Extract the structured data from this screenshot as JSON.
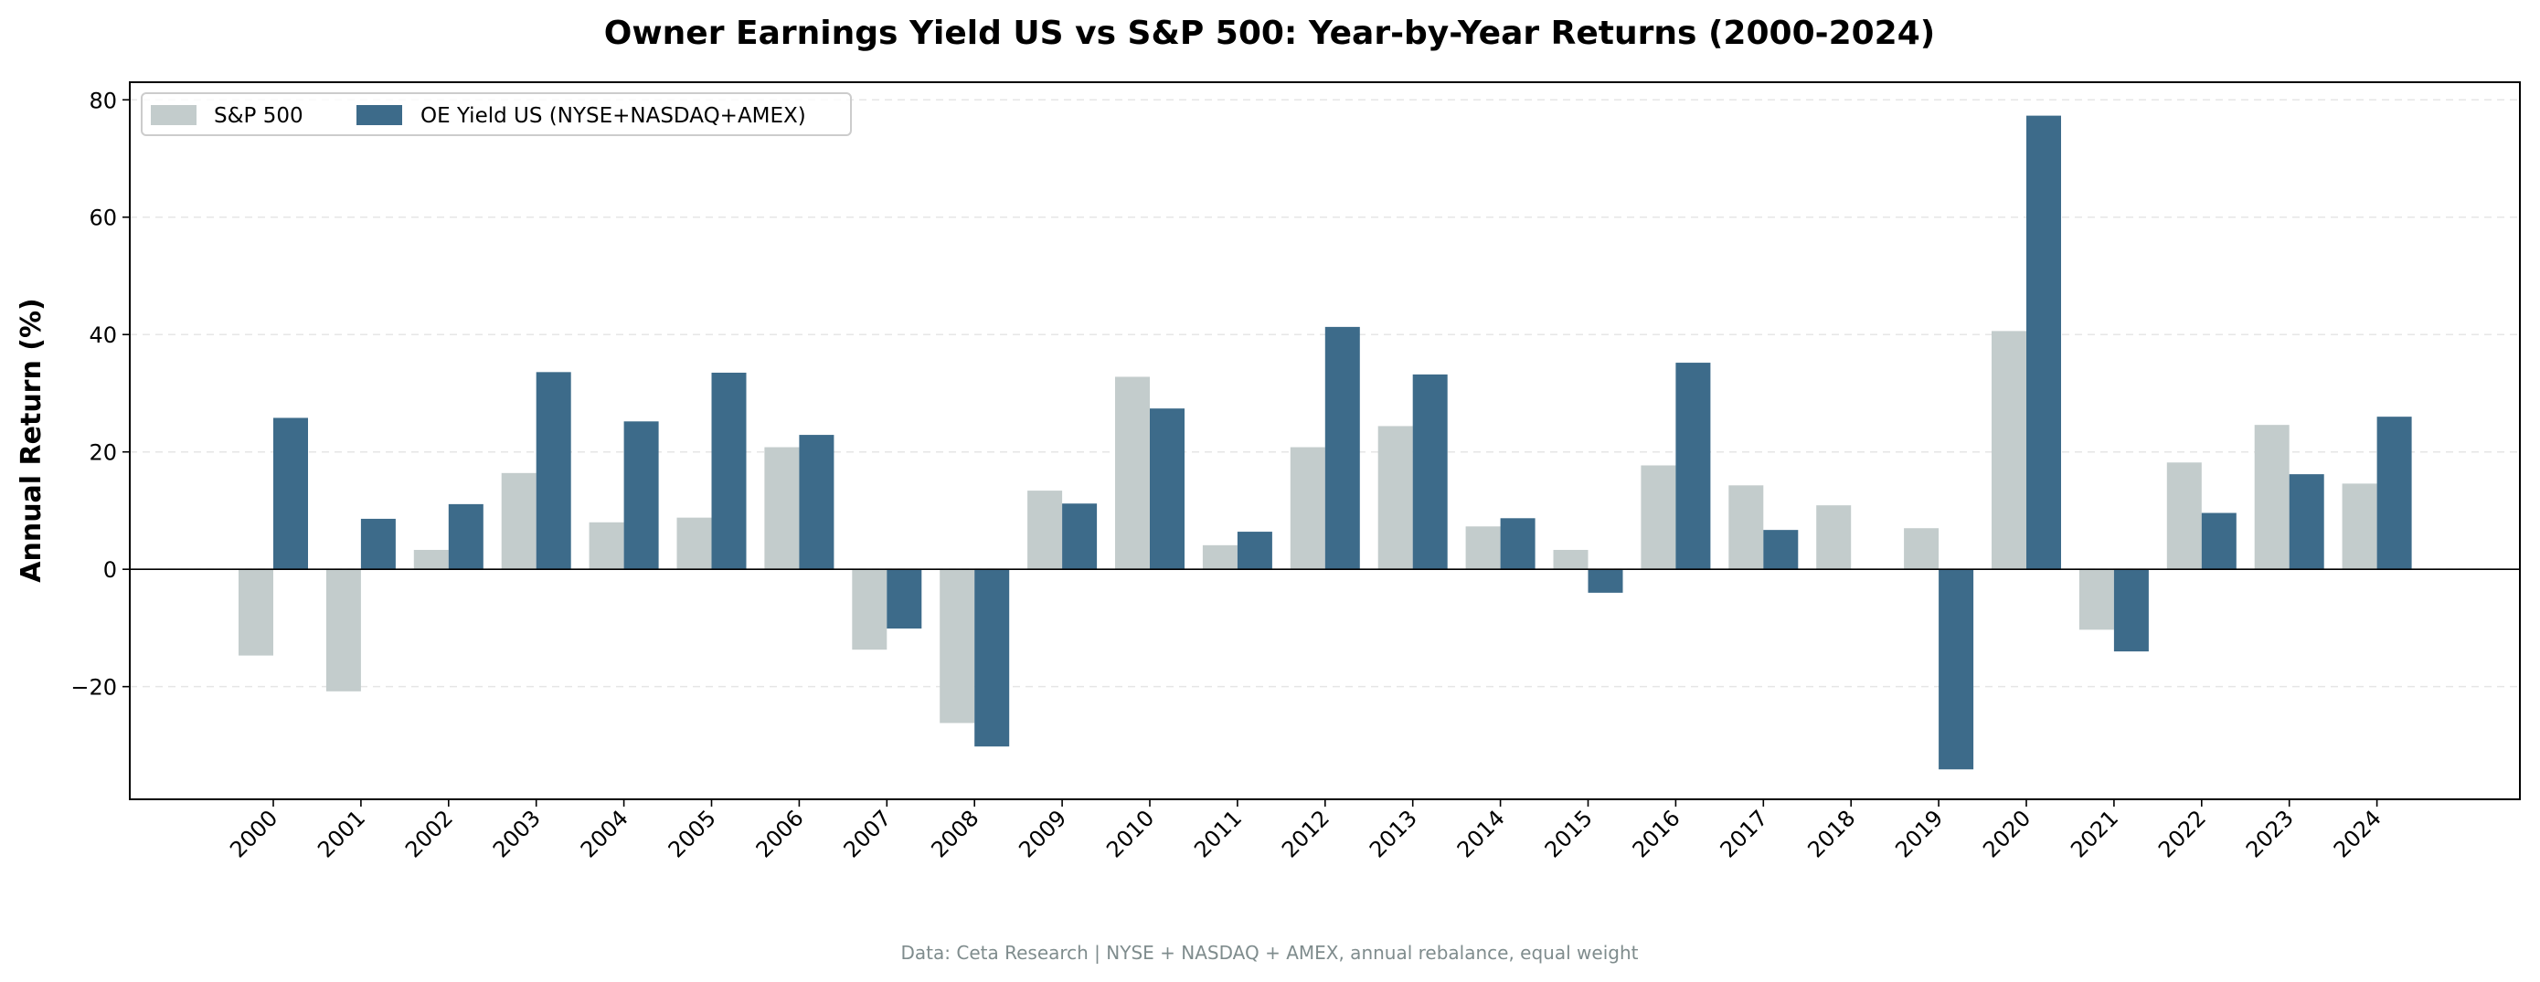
{
  "chart_data": {
    "type": "bar",
    "title": "Owner Earnings Yield US vs S&P 500: Year-by-Year Returns (2000-2024)",
    "xlabel": "",
    "ylabel": "Annual Return (%)",
    "ylim": [
      -39.2,
      83
    ],
    "yticks": [
      -20,
      0,
      20,
      40,
      60,
      80
    ],
    "ytick_labels": [
      "−20",
      "0",
      "20",
      "40",
      "60",
      "80"
    ],
    "grid": "y, dashed",
    "legend": "top-left",
    "categories": [
      "2000",
      "2001",
      "2002",
      "2003",
      "2004",
      "2005",
      "2006",
      "2007",
      "2008",
      "2009",
      "2010",
      "2011",
      "2012",
      "2013",
      "2014",
      "2015",
      "2016",
      "2017",
      "2018",
      "2019",
      "2020",
      "2021",
      "2022",
      "2023",
      "2024"
    ],
    "series": [
      {
        "name": "S&P 500",
        "color": "#c3cccc",
        "values": [
          -14.7,
          -20.8,
          3.3,
          16.4,
          8.0,
          8.8,
          20.8,
          -13.7,
          -26.2,
          13.4,
          32.8,
          4.1,
          20.8,
          24.4,
          7.3,
          3.3,
          17.7,
          14.3,
          10.9,
          7.0,
          40.6,
          -10.3,
          18.2,
          24.6,
          14.6
        ]
      },
      {
        "name": "OE Yield US (NYSE+NASDAQ+AMEX)",
        "color": "#3d6b8a",
        "values": [
          25.8,
          8.6,
          11.1,
          33.6,
          25.2,
          33.5,
          22.9,
          -10.1,
          -30.2,
          11.2,
          27.4,
          6.4,
          41.3,
          33.2,
          8.7,
          -4.0,
          35.2,
          6.7,
          0,
          -34.1,
          77.3,
          -14.0,
          9.6,
          16.2,
          26.0
        ]
      }
    ],
    "footnote": "Data: Ceta Research | NYSE + NASDAQ + AMEX, annual rebalance, equal weight"
  }
}
